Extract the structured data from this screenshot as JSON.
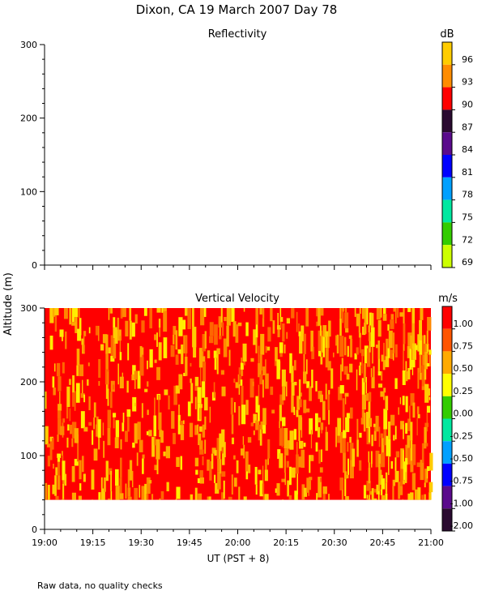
{
  "page": {
    "title": "Dixon, CA 19 March 2007  Day  78",
    "footnote": "Raw data, no quality checks",
    "ylabel": "Altitude (m)",
    "xlabel": "UT  (PST + 8)"
  },
  "chart_data": [
    {
      "type": "heatmap",
      "title": "Reflectivity",
      "colorbar_unit": "dB",
      "ylim": [
        0,
        300
      ],
      "yticks": [
        0,
        100,
        200,
        300
      ],
      "xticks": [
        "19:00",
        "19:15",
        "19:30",
        "19:45",
        "20:00",
        "20:15",
        "20:30",
        "20:45",
        "21:00"
      ],
      "colorbar": {
        "labels": [
          "96",
          "93",
          "90",
          "87",
          "84",
          "81",
          "78",
          "75",
          "72",
          "69"
        ],
        "colors": [
          "#ffcc00",
          "#ff8c00",
          "#ff0000",
          "#2a0a30",
          "#5a0a8c",
          "#0000ff",
          "#00a0ff",
          "#00e8a0",
          "#33cc00",
          "#ccff00"
        ]
      },
      "data": "none"
    },
    {
      "type": "heatmap",
      "title": "Vertical Velocity",
      "colorbar_unit": "m/s",
      "ylim": [
        0,
        300
      ],
      "yticks": [
        0,
        100,
        200,
        300
      ],
      "xticks": [
        "19:00",
        "19:15",
        "19:30",
        "19:45",
        "20:00",
        "20:15",
        "20:30",
        "20:45",
        "21:00"
      ],
      "data_range": {
        "time": [
          "19:00",
          "21:00"
        ],
        "altitude_m": [
          40,
          300
        ]
      },
      "dominant_values_m_s": [
        1.0,
        1.25
      ],
      "colorbar": {
        "labels": [
          "1.00",
          "0.75",
          "0.50",
          "0.25",
          "0.00",
          "-0.25",
          "-0.50",
          "-0.75",
          "-1.00",
          "-2.00"
        ],
        "colors": [
          "#ff0000",
          "#ff5500",
          "#ffaa00",
          "#ffff00",
          "#33cc00",
          "#00e8a0",
          "#00a0ff",
          "#0000ff",
          "#5a0a8c",
          "#2a0a30"
        ]
      }
    }
  ]
}
